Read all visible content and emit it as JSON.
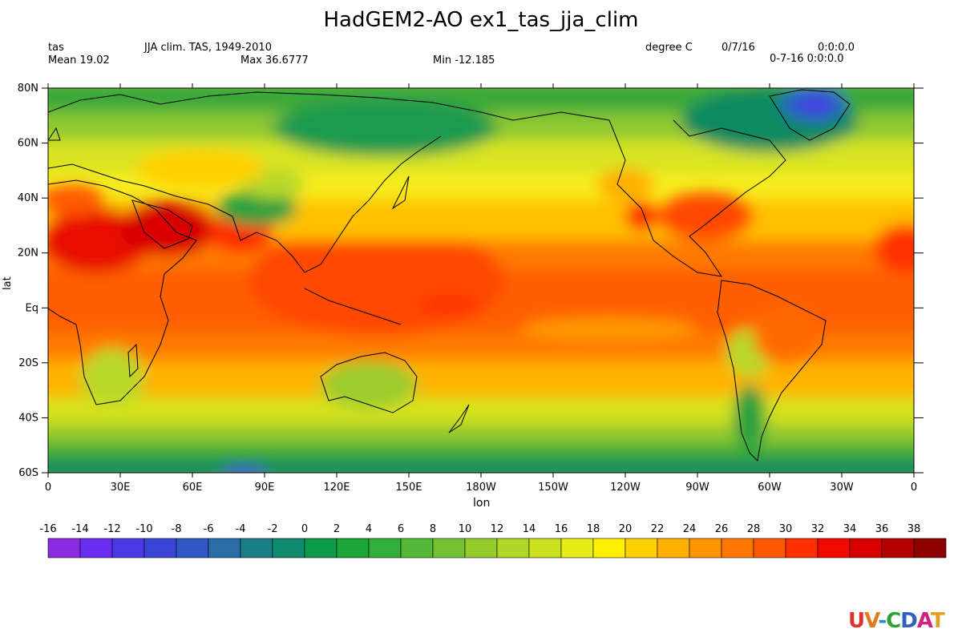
{
  "title": "HadGEM2-AO ex1_tas_jja_clim",
  "header": {
    "var_name": "tas",
    "description": "JJA clim. TAS, 1949-2010",
    "units": "degree C",
    "date": "0/7/16",
    "time": "0:0:0.0",
    "mean": "Mean 19.02",
    "max": "Max 36.6777",
    "min": "Min -12.185",
    "datetime": "0-7-16 0:0:0.0"
  },
  "map": {
    "xlabel": "lon",
    "ylabel": "lat",
    "lon_range": [
      0,
      360
    ],
    "lat_range": [
      -60,
      80
    ],
    "lon_ticks": [
      {
        "value": 0,
        "label": "0"
      },
      {
        "value": 30,
        "label": "30E"
      },
      {
        "value": 60,
        "label": "60E"
      },
      {
        "value": 90,
        "label": "90E"
      },
      {
        "value": 120,
        "label": "120E"
      },
      {
        "value": 150,
        "label": "150E"
      },
      {
        "value": 180,
        "label": "180W"
      },
      {
        "value": 210,
        "label": "150W"
      },
      {
        "value": 240,
        "label": "120W"
      },
      {
        "value": 270,
        "label": "90W"
      },
      {
        "value": 300,
        "label": "60W"
      },
      {
        "value": 330,
        "label": "30W"
      },
      {
        "value": 360,
        "label": "0"
      }
    ],
    "lat_ticks": [
      {
        "value": 80,
        "label": "80N"
      },
      {
        "value": 60,
        "label": "60N"
      },
      {
        "value": 40,
        "label": "40N"
      },
      {
        "value": 20,
        "label": "20N"
      },
      {
        "value": 0,
        "label": "Eq"
      },
      {
        "value": -20,
        "label": "20S"
      },
      {
        "value": -40,
        "label": "40S"
      },
      {
        "value": -60,
        "label": "60S"
      }
    ]
  },
  "colorbar": {
    "levels": [
      -16,
      -14,
      -12,
      -10,
      -8,
      -6,
      -4,
      -2,
      0,
      2,
      4,
      6,
      8,
      10,
      12,
      14,
      16,
      18,
      20,
      22,
      24,
      26,
      28,
      30,
      32,
      34,
      36,
      38
    ],
    "colors": [
      "#8a2be2",
      "#6a2ef0",
      "#4a3ae6",
      "#3a44d6",
      "#2f58c4",
      "#2a6ea8",
      "#1a7e86",
      "#0f8a6e",
      "#0d9a4a",
      "#1ca63c",
      "#34ae3a",
      "#52b836",
      "#74c232",
      "#94cc2e",
      "#b0d628",
      "#cce020",
      "#e6ec18",
      "#fff000",
      "#ffd000",
      "#ffb000",
      "#ff9400",
      "#ff7600",
      "#ff5800",
      "#ff3000",
      "#f20a00",
      "#d80000",
      "#b40000",
      "#8c0000"
    ]
  },
  "logo": {
    "text": "UV-CDAT"
  }
}
